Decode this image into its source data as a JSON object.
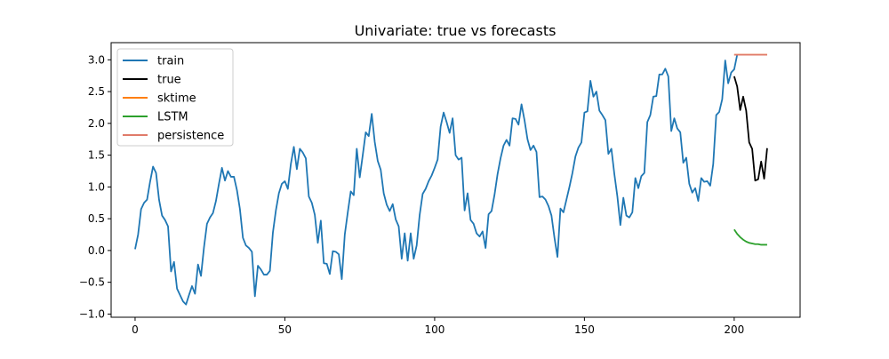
{
  "chart_data": {
    "type": "line",
    "title": "Univariate: true vs forecasts",
    "xlabel": "",
    "ylabel": "",
    "xlim": [
      -8,
      222
    ],
    "ylim": [
      -1.05,
      3.27
    ],
    "xticks": [
      0,
      50,
      100,
      150,
      200
    ],
    "yticks": [
      -1.0,
      -0.5,
      0.0,
      0.5,
      1.0,
      1.5,
      2.0,
      2.5,
      3.0
    ],
    "grid": false,
    "legend_position": "top-left",
    "series": [
      {
        "name": "train",
        "color": "#1f77b4",
        "x_start": 0,
        "values": [
          0.02,
          0.25,
          0.65,
          0.75,
          0.8,
          1.08,
          1.32,
          1.22,
          0.8,
          0.55,
          0.48,
          0.38,
          -0.33,
          -0.18,
          -0.6,
          -0.7,
          -0.8,
          -0.85,
          -0.7,
          -0.56,
          -0.68,
          -0.22,
          -0.4,
          0.05,
          0.42,
          0.52,
          0.59,
          0.78,
          1.05,
          1.3,
          1.1,
          1.25,
          1.16,
          1.16,
          0.95,
          0.65,
          0.2,
          0.08,
          0.04,
          -0.02,
          -0.72,
          -0.24,
          -0.3,
          -0.38,
          -0.38,
          -0.32,
          0.28,
          0.63,
          0.9,
          1.05,
          1.09,
          0.97,
          1.36,
          1.63,
          1.28,
          1.6,
          1.54,
          1.45,
          0.85,
          0.75,
          0.56,
          0.12,
          0.47,
          -0.2,
          -0.21,
          -0.37,
          -0.01,
          -0.02,
          -0.06,
          -0.45,
          0.25,
          0.6,
          0.93,
          0.87,
          1.6,
          1.15,
          1.5,
          1.86,
          1.8,
          2.15,
          1.71,
          1.41,
          1.27,
          0.9,
          0.72,
          0.62,
          0.73,
          0.49,
          0.38,
          -0.13,
          0.27,
          -0.16,
          0.27,
          -0.13,
          0.08,
          0.56,
          0.89,
          0.97,
          1.09,
          1.18,
          1.3,
          1.43,
          1.95,
          2.17,
          2.02,
          1.85,
          2.08,
          1.5,
          1.43,
          1.46,
          0.63,
          0.9,
          0.48,
          0.42,
          0.27,
          0.22,
          0.3,
          0.04,
          0.57,
          0.62,
          0.88,
          1.2,
          1.45,
          1.65,
          1.74,
          1.65,
          2.08,
          2.07,
          1.98,
          2.3,
          2.05,
          1.75,
          1.58,
          1.65,
          1.55,
          0.84,
          0.85,
          0.8,
          0.7,
          0.55,
          0.2,
          -0.1,
          0.66,
          0.6,
          0.8,
          1.0,
          1.22,
          1.48,
          1.62,
          1.7,
          2.17,
          2.19,
          2.67,
          2.42,
          2.5,
          2.2,
          2.13,
          2.05,
          1.52,
          1.6,
          1.2,
          0.85,
          0.4,
          0.83,
          0.55,
          0.52,
          0.6,
          1.14,
          0.98,
          1.17,
          1.22,
          2.02,
          2.13,
          2.42,
          2.43,
          2.77,
          2.77,
          2.86,
          2.74,
          1.88,
          2.08,
          1.92,
          1.86,
          1.38,
          1.46,
          1.05,
          0.91,
          0.98,
          0.78,
          1.14,
          1.08,
          1.09,
          1.02,
          1.36,
          2.13,
          2.18,
          2.38,
          2.99,
          2.63,
          2.8,
          2.85,
          3.08
        ]
      },
      {
        "name": "true",
        "color": "#000000",
        "x_start": 200,
        "values": [
          2.74,
          2.58,
          2.21,
          2.42,
          2.2,
          1.7,
          1.6,
          1.1,
          1.12,
          1.4,
          1.13,
          1.61
        ]
      },
      {
        "name": "sktime",
        "color": "#ff7f0e",
        "x_start": 200,
        "values": [
          3.08,
          3.08,
          3.08,
          3.08,
          3.08,
          3.08,
          3.08,
          3.08,
          3.08,
          3.08,
          3.08,
          3.08
        ]
      },
      {
        "name": "LSTM",
        "color": "#2ca02c",
        "x_start": 200,
        "values": [
          0.33,
          0.26,
          0.21,
          0.17,
          0.14,
          0.12,
          0.11,
          0.1,
          0.1,
          0.09,
          0.09,
          0.09
        ]
      },
      {
        "name": "persistence",
        "color": "#e07b6a",
        "x_start": 200,
        "values": [
          3.08,
          3.08,
          3.08,
          3.08,
          3.08,
          3.08,
          3.08,
          3.08,
          3.08,
          3.08,
          3.08,
          3.08
        ]
      }
    ]
  }
}
